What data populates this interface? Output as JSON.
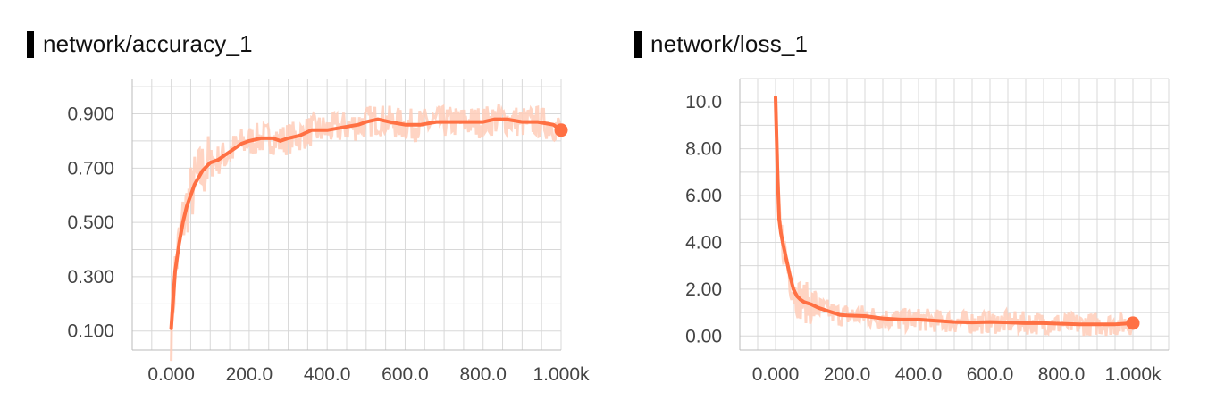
{
  "chart_data": [
    {
      "type": "line",
      "title": "network/accuracy_1",
      "xlim": [
        -100,
        1000
      ],
      "ylim": [
        0.03,
        1.03
      ],
      "x_ticks": [
        0,
        200,
        400,
        600,
        800,
        1000
      ],
      "x_tick_labels": [
        "0.000",
        "200.0",
        "400.0",
        "600.0",
        "800.0",
        "1.000k"
      ],
      "y_ticks": [
        0.1,
        0.3,
        0.5,
        0.7,
        0.9
      ],
      "y_tick_labels": [
        "0.100",
        "0.300",
        "0.500",
        "0.700",
        "0.900"
      ],
      "grid": true,
      "color": "#ff7043",
      "raw_color": "#ffcdb8",
      "series": [
        {
          "smoothed": {
            "x": [
              0,
              10,
              20,
              30,
              40,
              60,
              80,
              100,
              120,
              150,
              180,
              200,
              230,
              260,
              280,
              300,
              330,
              360,
              400,
              440,
              480,
              500,
              530,
              560,
              600,
              640,
              680,
              720,
              760,
              800,
              830,
              860,
              900,
              940,
              980,
              1000
            ],
            "y": [
              0.11,
              0.32,
              0.42,
              0.5,
              0.56,
              0.64,
              0.69,
              0.72,
              0.73,
              0.76,
              0.79,
              0.8,
              0.81,
              0.81,
              0.8,
              0.81,
              0.82,
              0.84,
              0.84,
              0.85,
              0.86,
              0.87,
              0.88,
              0.87,
              0.86,
              0.86,
              0.87,
              0.87,
              0.87,
              0.87,
              0.88,
              0.88,
              0.87,
              0.87,
              0.86,
              0.84
            ]
          },
          "raw_spread": 0.06
        }
      ]
    },
    {
      "type": "line",
      "title": "network/loss_1",
      "xlim": [
        -100,
        1100
      ],
      "ylim": [
        -0.6,
        11.0
      ],
      "x_ticks": [
        0,
        200,
        400,
        600,
        800,
        1000
      ],
      "x_tick_labels": [
        "0.000",
        "200.0",
        "400.0",
        "600.0",
        "800.0",
        "1.000k"
      ],
      "y_ticks": [
        0,
        2,
        4,
        6,
        8,
        10
      ],
      "y_tick_labels": [
        "0.00",
        "2.00",
        "4.00",
        "6.00",
        "8.00",
        "10.0"
      ],
      "grid": true,
      "color": "#ff7043",
      "raw_color": "#ffcdb8",
      "series": [
        {
          "smoothed": {
            "x": [
              0,
              5,
              10,
              15,
              20,
              30,
              40,
              50,
              60,
              70,
              80,
              100,
              120,
              150,
              180,
              200,
              250,
              300,
              350,
              400,
              450,
              500,
              550,
              600,
              650,
              700,
              750,
              800,
              850,
              900,
              950,
              1000
            ],
            "y": [
              10.2,
              7.2,
              5.0,
              4.4,
              4.0,
              3.3,
              2.6,
              2.0,
              1.7,
              1.55,
              1.45,
              1.35,
              1.2,
              1.05,
              0.9,
              0.88,
              0.85,
              0.75,
              0.7,
              0.7,
              0.65,
              0.6,
              0.58,
              0.6,
              0.58,
              0.55,
              0.55,
              0.52,
              0.5,
              0.5,
              0.5,
              0.55
            ]
          },
          "raw_spread": 0.5
        }
      ]
    }
  ]
}
